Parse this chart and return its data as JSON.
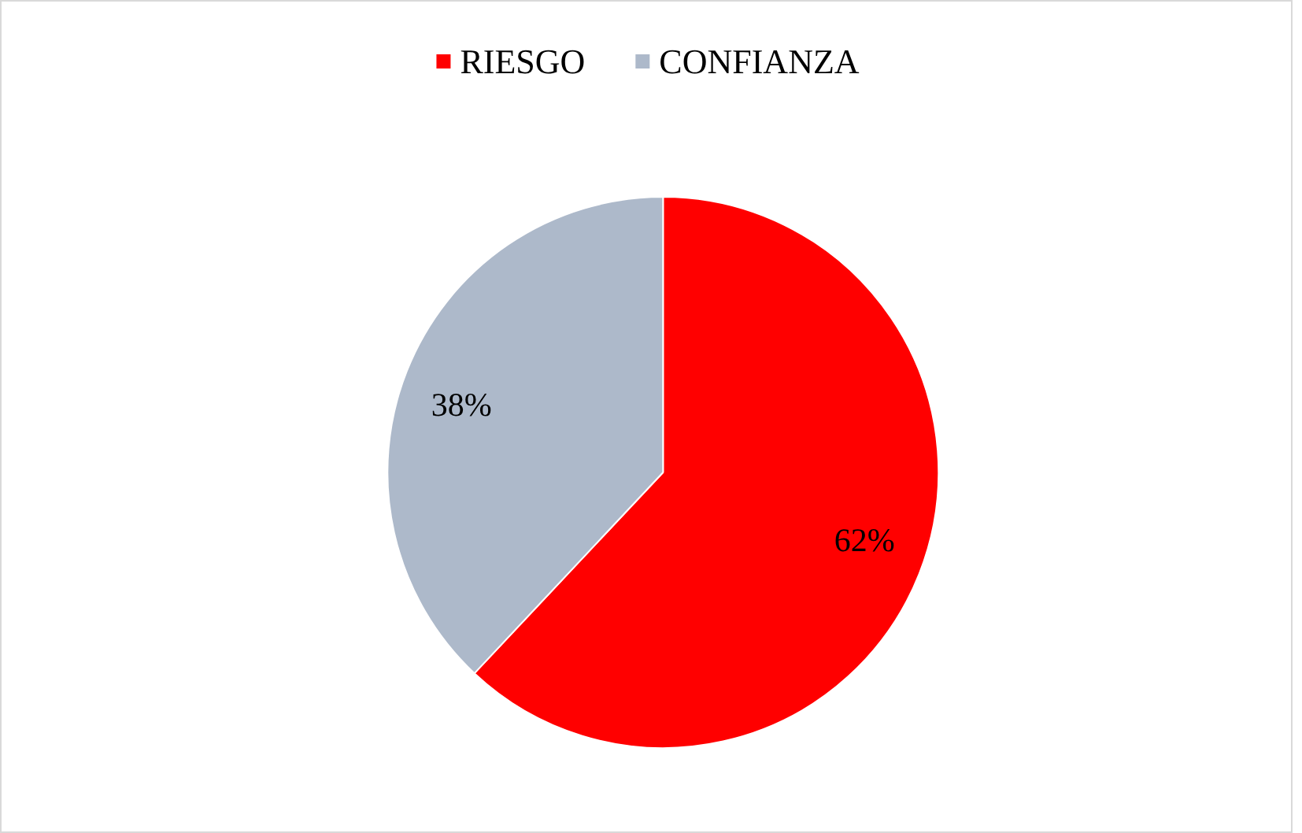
{
  "chart_data": {
    "type": "pie",
    "categories": [
      "RIESGO",
      "CONFIANZA"
    ],
    "values": [
      62,
      38
    ],
    "colors": [
      "#ff0000",
      "#adb9ca"
    ],
    "value_labels": [
      "62%",
      "38%"
    ],
    "legend": "top"
  }
}
